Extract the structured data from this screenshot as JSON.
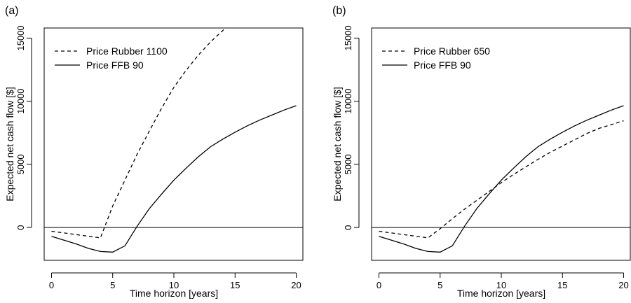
{
  "chart_data": [
    {
      "type": "line",
      "panel_label": "(a)",
      "xlabel": "Time horizon [years]",
      "ylabel": "Expected net cash flow [$]",
      "xlim": [
        -0.6,
        20.6
      ],
      "ylim": [
        -2600,
        15800
      ],
      "xticks": [
        0,
        5,
        10,
        15,
        20
      ],
      "yticks": [
        0,
        5000,
        10000,
        15000
      ],
      "reference_line_y": 0,
      "legend_position": "top-left",
      "series": [
        {
          "name": "Price Rubber 1100",
          "style": "dashed",
          "x": [
            0,
            1,
            2,
            3,
            4,
            5,
            6,
            7,
            8,
            9,
            10,
            11,
            12,
            13,
            14,
            15,
            16
          ],
          "y": [
            -300,
            -430,
            -560,
            -690,
            -820,
            1700,
            3750,
            5800,
            7650,
            9450,
            11100,
            12450,
            13650,
            14700,
            15600,
            16500,
            17300
          ]
        },
        {
          "name": "Price FFB 90",
          "style": "solid",
          "x": [
            0,
            1,
            2,
            3,
            4,
            5,
            6,
            7,
            8,
            9,
            10,
            11,
            12,
            13,
            14,
            15,
            16,
            17,
            18,
            19,
            20
          ],
          "y": [
            -700,
            -1000,
            -1300,
            -1650,
            -1900,
            -1950,
            -1450,
            100,
            1500,
            2650,
            3750,
            4700,
            5600,
            6400,
            7000,
            7550,
            8050,
            8500,
            8900,
            9300,
            9650
          ]
        }
      ]
    },
    {
      "type": "line",
      "panel_label": "(b)",
      "xlabel": "Time horizon [years]",
      "ylabel": "Expected net cash flow [$]",
      "xlim": [
        -0.6,
        20.6
      ],
      "ylim": [
        -2600,
        15800
      ],
      "xticks": [
        0,
        5,
        10,
        15,
        20
      ],
      "yticks": [
        0,
        5000,
        10000,
        15000
      ],
      "reference_line_y": 0,
      "legend_position": "top-left",
      "series": [
        {
          "name": "Price Rubber 650",
          "style": "dashed",
          "x": [
            0,
            1,
            2,
            3,
            4,
            5,
            6,
            7,
            8,
            9,
            10,
            11,
            12,
            13,
            14,
            15,
            16,
            17,
            18,
            19,
            20
          ],
          "y": [
            -300,
            -430,
            -560,
            -690,
            -820,
            -100,
            700,
            1450,
            2150,
            2850,
            3550,
            4200,
            4800,
            5400,
            5950,
            6450,
            6950,
            7450,
            7850,
            8150,
            8450
          ]
        },
        {
          "name": "Price FFB 90",
          "style": "solid",
          "x": [
            0,
            1,
            2,
            3,
            4,
            5,
            6,
            7,
            8,
            9,
            10,
            11,
            12,
            13,
            14,
            15,
            16,
            17,
            18,
            19,
            20
          ],
          "y": [
            -700,
            -1000,
            -1300,
            -1650,
            -1900,
            -1950,
            -1450,
            100,
            1500,
            2650,
            3750,
            4700,
            5600,
            6400,
            7000,
            7550,
            8050,
            8500,
            8900,
            9300,
            9650
          ]
        }
      ]
    }
  ]
}
